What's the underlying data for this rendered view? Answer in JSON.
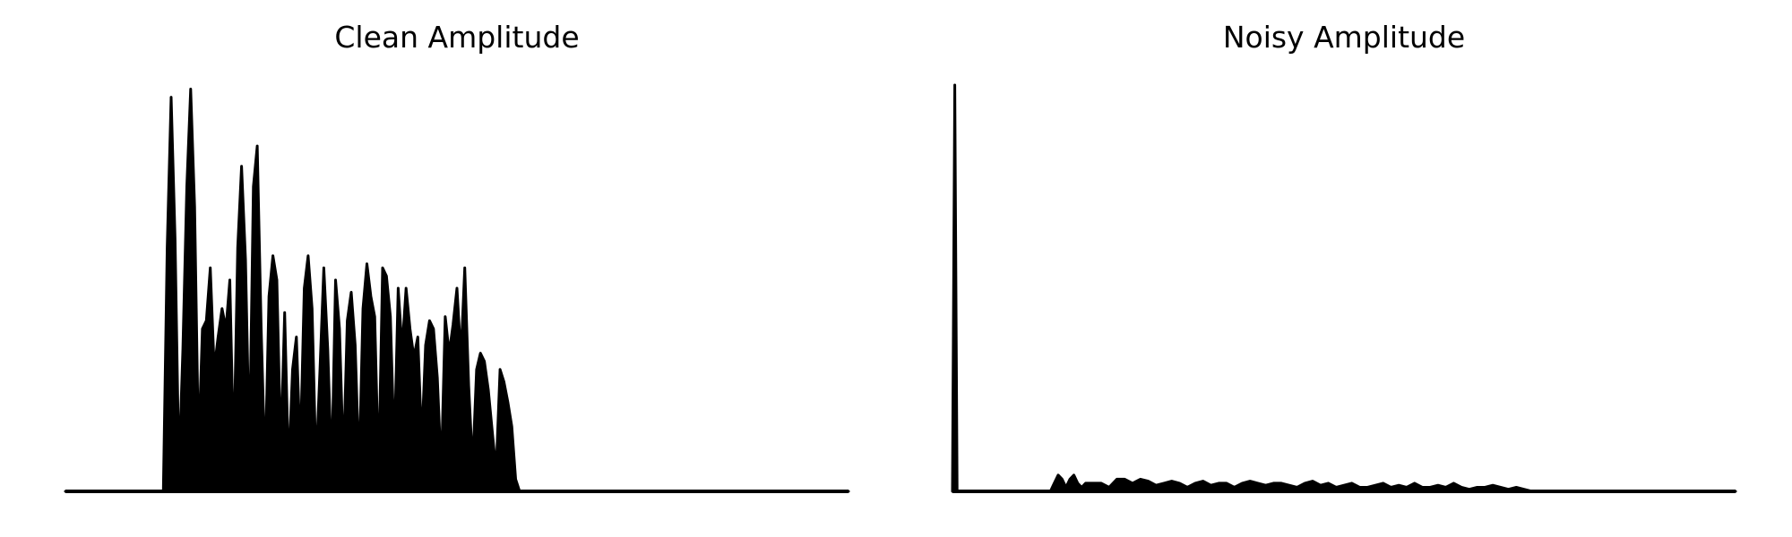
{
  "chart_data": [
    {
      "type": "area",
      "title": "Clean Amplitude",
      "xlabel": "",
      "ylabel": "",
      "grid": false,
      "axes_visible": false,
      "ylim": [
        0,
        1.0
      ],
      "x_domain": [
        0,
        1.0
      ],
      "color": "#000000",
      "x": [
        0.0,
        0.125,
        0.13,
        0.135,
        0.14,
        0.145,
        0.15,
        0.155,
        0.16,
        0.165,
        0.17,
        0.175,
        0.18,
        0.185,
        0.19,
        0.195,
        0.2,
        0.205,
        0.21,
        0.215,
        0.22,
        0.225,
        0.23,
        0.235,
        0.24,
        0.245,
        0.25,
        0.255,
        0.26,
        0.265,
        0.27,
        0.275,
        0.28,
        0.285,
        0.29,
        0.295,
        0.3,
        0.305,
        0.31,
        0.315,
        0.32,
        0.325,
        0.33,
        0.335,
        0.34,
        0.345,
        0.35,
        0.355,
        0.36,
        0.365,
        0.37,
        0.375,
        0.38,
        0.385,
        0.39,
        0.395,
        0.4,
        0.405,
        0.41,
        0.415,
        0.42,
        0.425,
        0.43,
        0.435,
        0.44,
        0.445,
        0.45,
        0.455,
        0.46,
        0.465,
        0.47,
        0.475,
        0.48,
        0.485,
        0.49,
        0.495,
        0.5,
        0.505,
        0.51,
        0.515,
        0.52,
        0.525,
        0.53,
        0.535,
        0.54,
        0.545,
        0.55,
        0.555,
        0.56,
        0.565,
        0.57,
        0.575,
        0.58,
        0.585,
        0.59,
        0.595,
        0.6,
        0.605,
        0.61,
        0.615,
        0.62,
        0.625,
        0.63,
        0.635,
        0.64,
        0.645,
        0.65,
        0.655,
        0.66,
        0.665,
        0.67,
        0.675,
        0.68,
        0.685,
        0.69,
        0.695,
        0.7,
        0.705,
        0.71,
        0.715,
        0.72,
        0.725,
        0.73,
        0.735,
        0.74,
        0.745,
        0.75,
        0.755,
        0.76,
        0.765,
        0.77,
        0.775,
        0.78,
        0.785,
        0.79,
        1.0
      ],
      "y": [
        0.0,
        0.0,
        0.6,
        0.97,
        0.62,
        0.05,
        0.35,
        0.75,
        0.99,
        0.7,
        0.1,
        0.4,
        0.42,
        0.55,
        0.3,
        0.38,
        0.45,
        0.4,
        0.52,
        0.08,
        0.6,
        0.8,
        0.57,
        0.1,
        0.75,
        0.85,
        0.4,
        0.05,
        0.48,
        0.58,
        0.52,
        0.1,
        0.44,
        0.05,
        0.3,
        0.38,
        0.1,
        0.5,
        0.58,
        0.45,
        0.06,
        0.3,
        0.55,
        0.35,
        0.05,
        0.52,
        0.4,
        0.07,
        0.42,
        0.49,
        0.36,
        0.05,
        0.45,
        0.56,
        0.48,
        0.43,
        0.04,
        0.55,
        0.53,
        0.43,
        0.1,
        0.5,
        0.35,
        0.5,
        0.4,
        0.33,
        0.38,
        0.12,
        0.36,
        0.42,
        0.4,
        0.28,
        0.05,
        0.43,
        0.34,
        0.41,
        0.5,
        0.33,
        0.55,
        0.26,
        0.06,
        0.3,
        0.34,
        0.32,
        0.25,
        0.15,
        0.05,
        0.3,
        0.27,
        0.22,
        0.16,
        0.03,
        0.0,
        0.0,
        0.0,
        0.0,
        0.0,
        0.0,
        0.0,
        0.0,
        0.0,
        0.0,
        0.0,
        0.0,
        0.0,
        0.0,
        0.0,
        0.0,
        0.0,
        0.0,
        0.0,
        0.0,
        0.0,
        0.0,
        0.0,
        0.0,
        0.0,
        0.0,
        0.0,
        0.0,
        0.0,
        0.0,
        0.0,
        0.0,
        0.0,
        0.0,
        0.0,
        0.0,
        0.0,
        0.0,
        0.0,
        0.0,
        0.0,
        0.0,
        0.0,
        0.0
      ]
    },
    {
      "type": "area",
      "title": "Noisy Amplitude",
      "xlabel": "",
      "ylabel": "",
      "grid": false,
      "axes_visible": false,
      "ylim": [
        0,
        1.0
      ],
      "x_domain": [
        0,
        1.0
      ],
      "color": "#000000",
      "x": [
        0.0,
        0.003,
        0.006,
        0.125,
        0.13,
        0.135,
        0.14,
        0.145,
        0.15,
        0.155,
        0.16,
        0.165,
        0.17,
        0.18,
        0.19,
        0.2,
        0.21,
        0.22,
        0.23,
        0.24,
        0.25,
        0.26,
        0.27,
        0.28,
        0.29,
        0.3,
        0.31,
        0.32,
        0.33,
        0.34,
        0.35,
        0.36,
        0.37,
        0.38,
        0.39,
        0.4,
        0.41,
        0.42,
        0.43,
        0.44,
        0.45,
        0.46,
        0.47,
        0.48,
        0.49,
        0.5,
        0.51,
        0.52,
        0.53,
        0.54,
        0.55,
        0.56,
        0.57,
        0.58,
        0.59,
        0.6,
        0.61,
        0.62,
        0.63,
        0.64,
        0.65,
        0.66,
        0.67,
        0.68,
        0.69,
        0.7,
        0.71,
        0.72,
        0.73,
        0.74,
        0.75,
        0.76,
        0.77,
        0.78,
        0.79,
        1.0
      ],
      "y": [
        0.0,
        1.0,
        0.0,
        0.0,
        0.02,
        0.04,
        0.03,
        0.01,
        0.03,
        0.04,
        0.02,
        0.01,
        0.02,
        0.02,
        0.02,
        0.01,
        0.03,
        0.03,
        0.02,
        0.03,
        0.025,
        0.015,
        0.02,
        0.025,
        0.02,
        0.01,
        0.02,
        0.025,
        0.015,
        0.02,
        0.02,
        0.01,
        0.02,
        0.025,
        0.02,
        0.015,
        0.02,
        0.02,
        0.015,
        0.01,
        0.02,
        0.025,
        0.015,
        0.02,
        0.01,
        0.015,
        0.02,
        0.01,
        0.01,
        0.015,
        0.02,
        0.01,
        0.015,
        0.01,
        0.02,
        0.01,
        0.01,
        0.015,
        0.01,
        0.02,
        0.01,
        0.005,
        0.01,
        0.01,
        0.015,
        0.01,
        0.005,
        0.01,
        0.005,
        0.0,
        0.0,
        0.0,
        0.0,
        0.0,
        0.0,
        0.0
      ]
    }
  ]
}
